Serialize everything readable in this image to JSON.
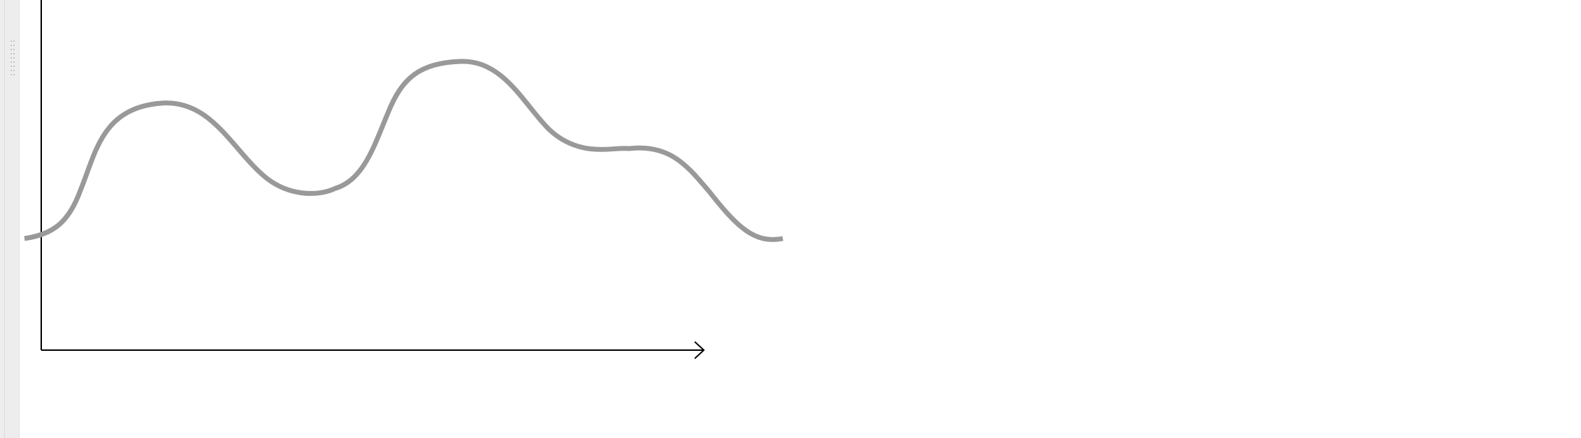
{
  "sidebar": {
    "grip_icon": "drag-handle-dots-icon"
  },
  "diagram": {
    "curve_color": "#999999",
    "axis_color": "#000000",
    "grip_color": "#c4c4c4",
    "panel_color": "#ededed"
  }
}
